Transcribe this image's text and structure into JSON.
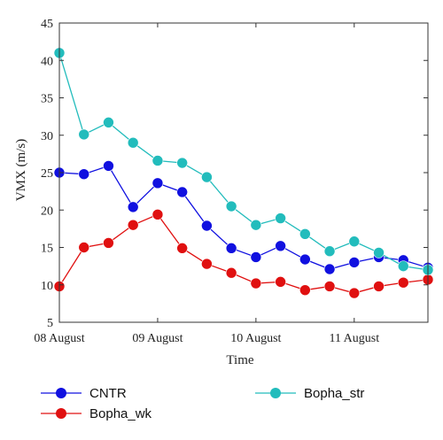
{
  "chart_data": {
    "type": "line",
    "title": "",
    "xlabel": "Time",
    "ylabel": "VMX (m/s)",
    "x": [
      0,
      0.25,
      0.5,
      0.75,
      1.0,
      1.25,
      1.5,
      1.75,
      2.0,
      2.25,
      2.5,
      2.75,
      3.0,
      3.25,
      3.5,
      3.75
    ],
    "x_ticks": [
      {
        "value": 0,
        "label": "08 August"
      },
      {
        "value": 1,
        "label": "09 August"
      },
      {
        "value": 2,
        "label": "10 August"
      },
      {
        "value": 3,
        "label": "11 August"
      }
    ],
    "xlim": [
      0,
      3.75
    ],
    "ylim": [
      5,
      45
    ],
    "y_ticks": [
      5,
      10,
      15,
      20,
      25,
      30,
      35,
      40,
      45
    ],
    "grid": false,
    "legend_position": "bottom",
    "series": [
      {
        "name": "CNTR",
        "color": "#1010e0",
        "values": [
          25.0,
          24.8,
          25.9,
          20.4,
          23.6,
          22.4,
          17.9,
          14.9,
          13.7,
          15.2,
          13.4,
          12.1,
          13.0,
          13.7,
          13.3,
          12.3
        ]
      },
      {
        "name": "Bopha_wk",
        "color": "#e01010",
        "values": [
          9.8,
          15.0,
          15.6,
          18.0,
          19.4,
          14.9,
          12.8,
          11.6,
          10.2,
          10.4,
          9.3,
          9.8,
          8.9,
          9.8,
          10.3,
          10.7
        ]
      },
      {
        "name": "Bopha_str",
        "color": "#22bcbc",
        "values": [
          41.0,
          30.1,
          31.7,
          29.0,
          26.6,
          26.3,
          24.4,
          20.5,
          18.0,
          18.9,
          16.8,
          14.5,
          15.8,
          14.3,
          12.5,
          12.0
        ]
      }
    ]
  }
}
